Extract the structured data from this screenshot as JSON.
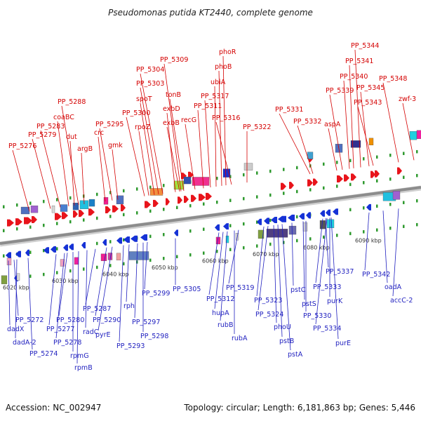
{
  "title": "Pseudomonas putida KT2440, complete genome",
  "footer": {
    "accession": "Accession: NC_002947",
    "topology": "Topology: circular; Length: 6,181,863 bp; Genes: 5,446"
  },
  "colors": {
    "forward": "#e8141b",
    "reverse": "#1632d6",
    "backbone": "#8c8c8c",
    "top_label": "#d40000",
    "bottom_label": "#1f1fbf",
    "dots": "#2f9a2f"
  },
  "scale_ticks": [
    "6020 kbp",
    "6030 kbp",
    "6040 kbp",
    "6050 kbp",
    "6060 kbp",
    "6070 kbp",
    "6080 kbp",
    "6090 kbp"
  ],
  "top_labels": [
    "PP_5276",
    "PP_5279",
    "PP_5283",
    "coaBC",
    "dut",
    "PP_5288",
    "argB",
    "crc",
    "PP_5295",
    "gmk",
    "PP_5300",
    "rpoZ",
    "spoT",
    "PP_5303",
    "PP_5304",
    "PP_5309",
    "exbD",
    "exbB",
    "tonB",
    "recG",
    "PP_5311",
    "PP_5317",
    "ubiA",
    "phoB",
    "phoR",
    "PP_5316",
    "PP_5322",
    "PP_5331",
    "PP_5332",
    "aspA",
    "PP_5339",
    "PP_5340",
    "PP_5341",
    "PP_5344",
    "PP_5345",
    "PP_5343",
    "PP_5348",
    "zwf-3"
  ],
  "bottom_labels": [
    "PP_5272",
    "dadX",
    "dadA-2",
    "PP_5274",
    "PP_5277",
    "PP_5280",
    "PP_5278",
    "rpmG",
    "rpmB",
    "radC",
    "PP_5287",
    "PP_5290",
    "pyrE",
    "PP_5293",
    "rph",
    "PP_5297",
    "PP_5298",
    "PP_5299",
    "PP_5305",
    "PP_5312",
    "hupA",
    "rubB",
    "rubA",
    "PP_5319",
    "PP_5323",
    "PP_5324",
    "phoU",
    "pstB",
    "pstA",
    "pstC",
    "pstS",
    "PP_5330",
    "PP_5333",
    "PP_5334",
    "purK",
    "purE",
    "PP_5337",
    "PP_5342",
    "oadA",
    "accC-2"
  ]
}
